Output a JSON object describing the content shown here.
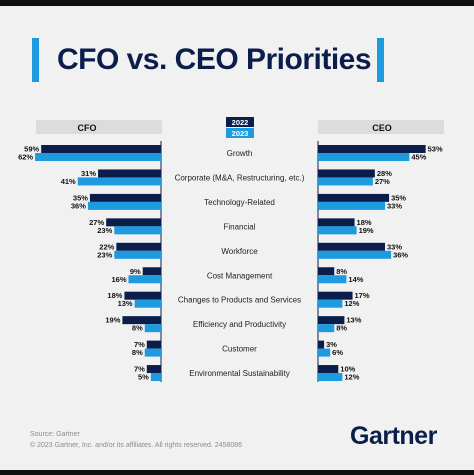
{
  "header": {
    "title": "CFO vs. CEO Priorities"
  },
  "chart_data": {
    "type": "bar",
    "title": "CFO vs. CEO Priorities",
    "legend": {
      "placement": "top-center",
      "entries": [
        "2022",
        "2023"
      ]
    },
    "panels": {
      "left": "CFO",
      "right": "CEO"
    },
    "categories": [
      "Growth",
      "Corporate (M&A, Restructuring, etc.)",
      "Technology-Related",
      "Financial",
      "Workforce",
      "Cost Management",
      "Changes to Products and Services",
      "Efficiency and Productivity",
      "Customer",
      "Environmental Sustainability"
    ],
    "series": [
      {
        "name": "2022",
        "panel": "CFO",
        "values": [
          59,
          31,
          35,
          27,
          22,
          9,
          18,
          19,
          7,
          7
        ]
      },
      {
        "name": "2023",
        "panel": "CFO",
        "values": [
          62,
          41,
          36,
          23,
          23,
          16,
          13,
          8,
          8,
          5
        ]
      },
      {
        "name": "2022",
        "panel": "CEO",
        "values": [
          53,
          28,
          35,
          18,
          33,
          8,
          17,
          13,
          3,
          10
        ]
      },
      {
        "name": "2023",
        "panel": "CEO",
        "values": [
          45,
          27,
          33,
          19,
          36,
          14,
          12,
          8,
          6,
          12
        ]
      }
    ],
    "value_suffix": "%",
    "colors": {
      "2022": "#0b1e4b",
      "2023": "#1d9bde",
      "panel_header": "#dcdcdc"
    },
    "xlim": [
      0,
      65
    ]
  },
  "footer": {
    "source": "Source: Gartner",
    "copyright": "© 2023 Gartner, Inc. and/or its affiliates. All rights reserved. 2458086"
  },
  "brand": {
    "logo_text": "Gartner"
  }
}
